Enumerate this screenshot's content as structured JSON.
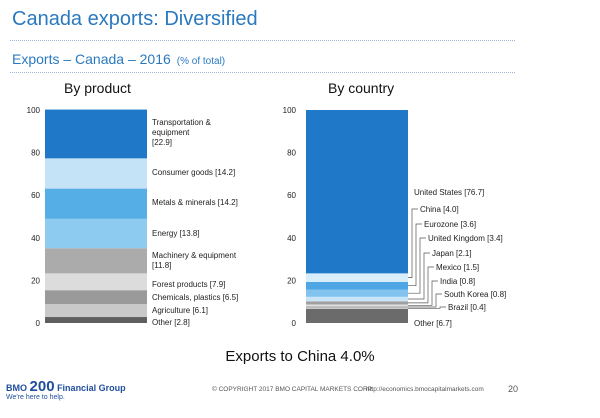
{
  "slide": {
    "title": "Canada exports: Diversified",
    "subtitle": "Exports – Canada – 2016",
    "unit_note": "(% of total)",
    "footer_note": "Exports to China 4.0%",
    "logo_text_left": "BMO",
    "logo_text_mid": "200",
    "logo_text_right": "Financial Group",
    "logo_tagline": "We're here to help.",
    "copyright": "© COPYRIGHT 2017 BMO CAPITAL MARKETS CORP.",
    "url": "http://economics.bmocapitalmarkets.com",
    "page_number": "20"
  },
  "chart_data": [
    {
      "type": "bar",
      "stacked": true,
      "title": "By product",
      "ylim": [
        0,
        100
      ],
      "yticks": [
        "0",
        "20",
        "40",
        "60",
        "80",
        "100"
      ],
      "grid": false,
      "segments": [
        {
          "label": "Other [2.8]",
          "value": 2.8,
          "color": "#5f5f5f"
        },
        {
          "label": "Agriculture [6.1]",
          "value": 6.1,
          "color": "#c9c9c9"
        },
        {
          "label": "Chemicals, plastics [6.5]",
          "value": 6.5,
          "color": "#9a9a9a"
        },
        {
          "label": "Forest products [7.9]",
          "value": 7.9,
          "color": "#dcdcdc"
        },
        {
          "label": "Machinery & equipment [11.8]",
          "value": 11.8,
          "color": "#ababab"
        },
        {
          "label": "Energy [13.8]",
          "value": 13.8,
          "color": "#8ecbf0"
        },
        {
          "label": "Metals & minerals [14.2]",
          "value": 14.2,
          "color": "#56aee6"
        },
        {
          "label": "Consumer goods [14.2]",
          "value": 14.2,
          "color": "#c4e3f7"
        },
        {
          "label": "Transportation & equipment [22.9]",
          "value": 22.9,
          "color": "#1f78c8"
        }
      ]
    },
    {
      "type": "bar",
      "stacked": true,
      "title": "By country",
      "ylim": [
        0,
        100
      ],
      "yticks": [
        "0",
        "20",
        "40",
        "60",
        "80",
        "100"
      ],
      "grid": false,
      "segments": [
        {
          "label": "Other [6.7]",
          "value": 6.7,
          "color": "#6b6b6b"
        },
        {
          "label": "Brazil [0.4]",
          "value": 0.4,
          "color": "#d4d4d4"
        },
        {
          "label": "South Korea [0.8]",
          "value": 0.8,
          "color": "#b0b0b0"
        },
        {
          "label": "India [0.8]",
          "value": 0.8,
          "color": "#e0e0e0"
        },
        {
          "label": "Mexico [1.5]",
          "value": 1.5,
          "color": "#a0a0a0"
        },
        {
          "label": "Japan [2.1]",
          "value": 2.1,
          "color": "#c8e5f8"
        },
        {
          "label": "United Kingdom [3.4]",
          "value": 3.4,
          "color": "#82c2ee"
        },
        {
          "label": "Eurozone [3.6]",
          "value": 3.6,
          "color": "#4ea6e4"
        },
        {
          "label": "China [4.0]",
          "value": 4.0,
          "color": "#d9eefb"
        },
        {
          "label": "United States [76.7]",
          "value": 76.7,
          "color": "#1f78c8"
        }
      ]
    }
  ]
}
